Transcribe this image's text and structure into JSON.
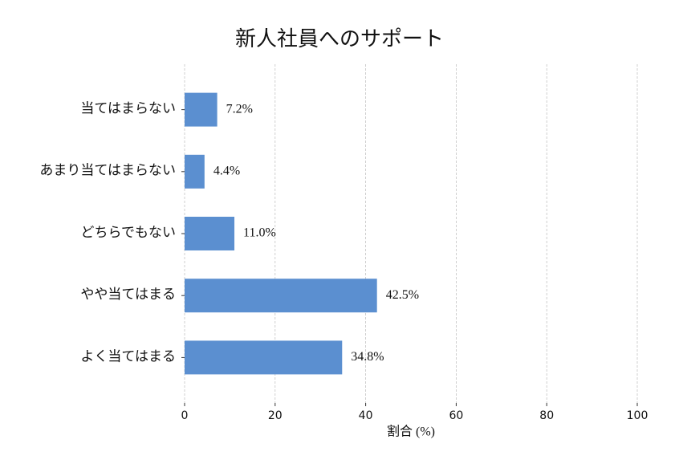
{
  "chart_data": {
    "type": "bar",
    "orientation": "horizontal",
    "title": "新人社員へのサポート",
    "categories": [
      "当てはまらない",
      "あまり当てはまらない",
      "どちらでもない",
      "やや当てはまる",
      "よく当てはまる"
    ],
    "values": [
      7.2,
      4.4,
      11.0,
      42.5,
      34.8
    ],
    "value_labels": [
      "7.2%",
      "4.4%",
      "11.0%",
      "42.5%",
      "34.8%"
    ],
    "color": "#5b8fd0",
    "x_label": "割合 (%)",
    "xlim": [
      0,
      100
    ],
    "xticks": [
      0,
      20,
      40,
      60,
      80,
      100
    ],
    "grid": true
  }
}
